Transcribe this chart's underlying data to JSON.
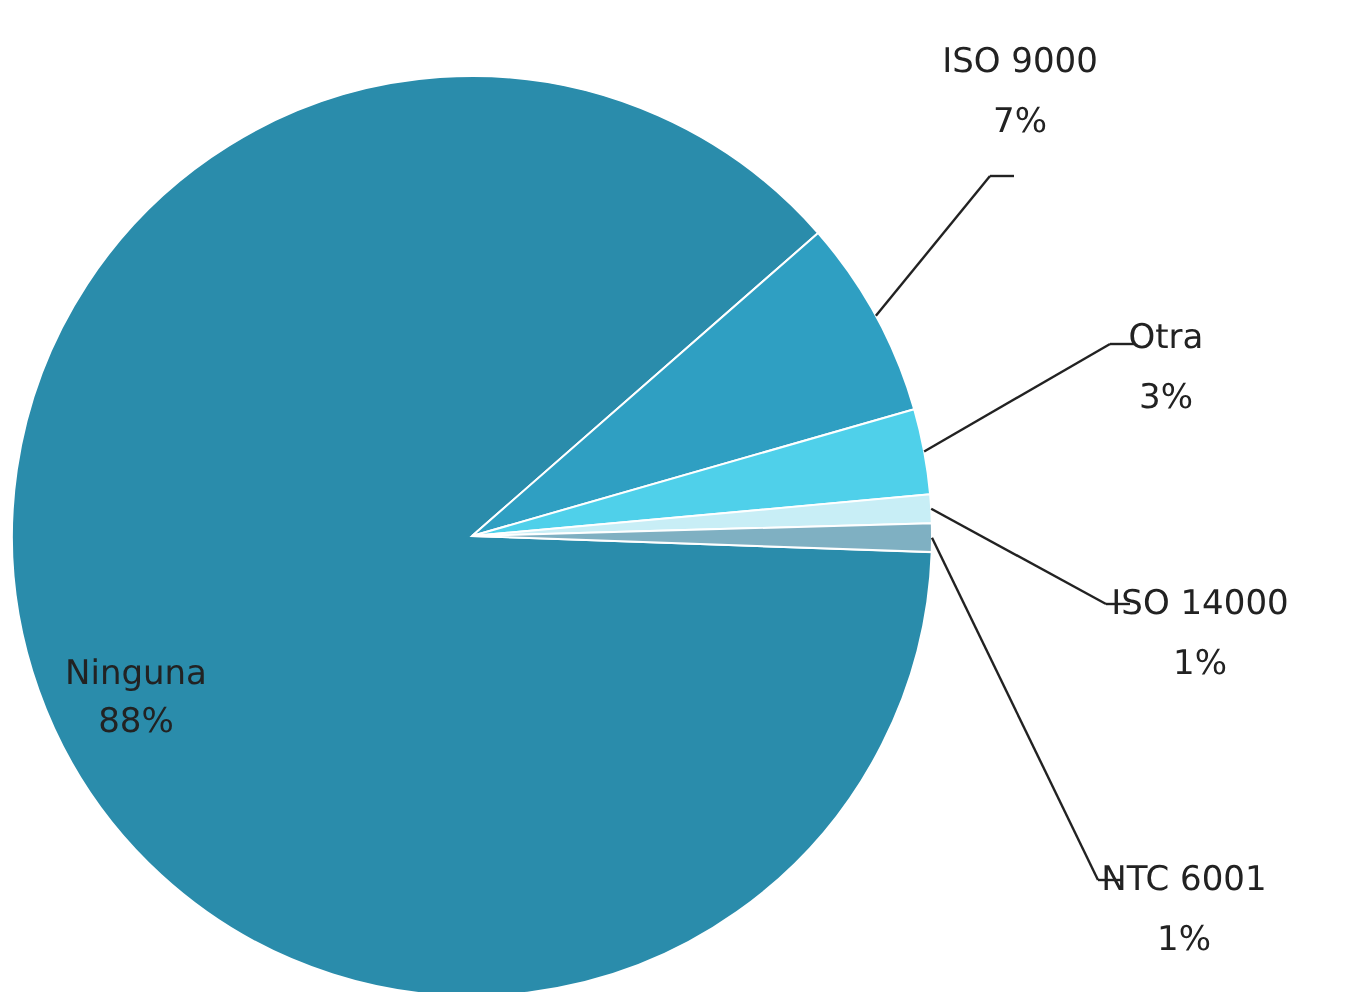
{
  "chart_data": {
    "type": "pie",
    "categories": [
      "Ninguna",
      "ISO 9000",
      "Otra",
      "ISO 14000",
      "NTC 6001"
    ],
    "values": [
      88,
      7,
      3,
      1,
      1
    ],
    "colors": [
      "#2a8cab",
      "#2f9fc2",
      "#4fd0ea",
      "#c8eef6",
      "#7fb0c2"
    ],
    "value_labels": [
      "88%",
      "7%",
      "3%",
      "1%",
      "1%"
    ]
  }
}
